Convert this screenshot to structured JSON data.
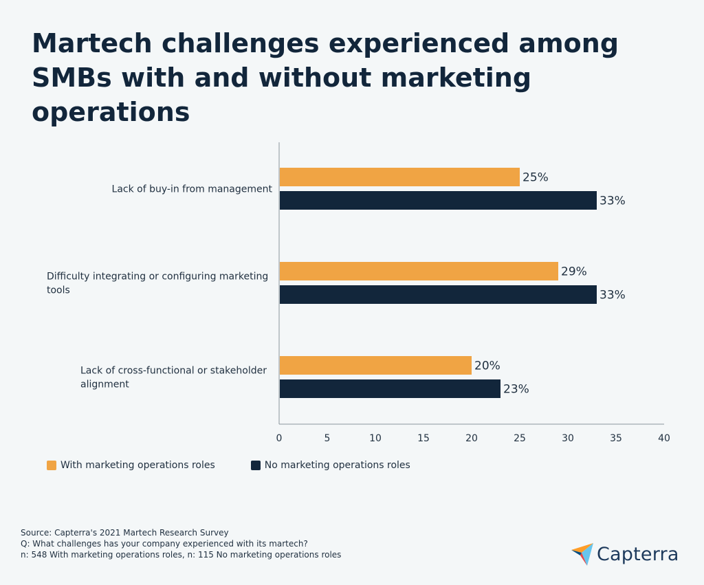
{
  "title": "Martech challenges experienced among SMBs with and without marketing operations",
  "chart_data": {
    "type": "bar",
    "orientation": "horizontal",
    "title": "Martech challenges experienced among SMBs with and without marketing operations",
    "categories": [
      [
        "Lack of buy-in from management"
      ],
      [
        "Difficulty integrating or configuring marketing",
        "tools"
      ],
      [
        "Lack of cross-functional or stakeholder",
        "alignment"
      ]
    ],
    "series": [
      {
        "name": "With marketing operations roles",
        "color": "#f0a444",
        "values": [
          25,
          29,
          20
        ],
        "labels": [
          "25%",
          "29%",
          "20%"
        ]
      },
      {
        "name": "No marketing operations roles",
        "color": "#12263b",
        "values": [
          33,
          33,
          23
        ],
        "labels": [
          "33%",
          "33%",
          "23%"
        ]
      }
    ],
    "xlim": [
      0,
      40
    ],
    "xticks": [
      0,
      5,
      10,
      15,
      20,
      25,
      30,
      35,
      40
    ],
    "grid": false,
    "legend_position": "bottom-left"
  },
  "legend": [
    {
      "label": "With marketing operations roles",
      "color": "#f0a444"
    },
    {
      "label": "No marketing operations roles",
      "color": "#12263b"
    }
  ],
  "footer": {
    "source": "Source: Capterra's 2021 Martech Research Survey",
    "question": "Q: What challenges has your company experienced with its martech?",
    "sample": "n: 548 With marketing operations roles, n: 115 No marketing operations roles"
  },
  "brand": {
    "name": "Capterra",
    "logo_icon": "capterra-arrow-logo-icon"
  }
}
